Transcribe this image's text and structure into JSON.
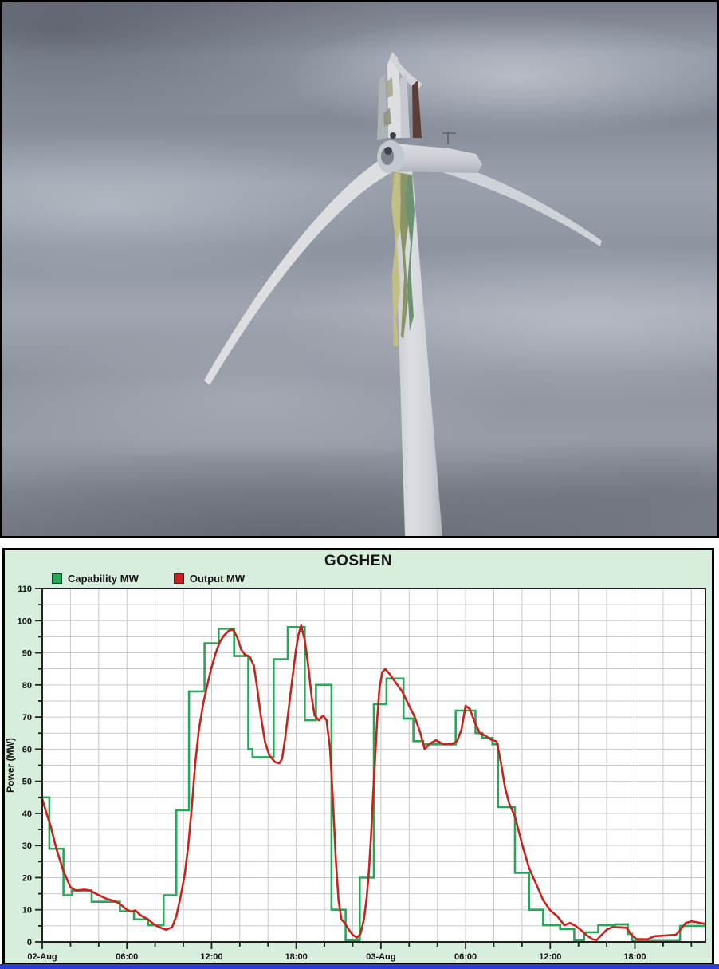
{
  "page": {
    "bottom_bar_color": "#2e3fd0"
  },
  "photo": {
    "palette": {
      "sky_base": "#8d93a0",
      "sky_light": "#b9bec7",
      "sky_dark": "#6e7380",
      "turbine_light": "#dcdee2",
      "turbine_mid": "#cfd2d8",
      "turbine_shade": "#b7bac1",
      "hub_dark": "#3f434c",
      "blade_stripe_maroon": "#5c3d38",
      "debris_olive": "#8a9465",
      "debris_yellow": "#c2bf82",
      "debris_teal": "#6d9273",
      "debris_tan": "#a8a787"
    }
  },
  "chart_data": {
    "type": "line",
    "title": "GOSHEN",
    "ylabel": "Power (MW)",
    "xlabel": "",
    "ylim": [
      0,
      110
    ],
    "y_tick_step": 10,
    "y_minor_step": 5,
    "x_range_hours": [
      0,
      47
    ],
    "x_minor_step_hours": 2,
    "x_major_ticks": [
      {
        "h": 0,
        "label": "02-Aug"
      },
      {
        "h": 6,
        "label": "06:00"
      },
      {
        "h": 12,
        "label": "12:00"
      },
      {
        "h": 18,
        "label": "18:00"
      },
      {
        "h": 24,
        "label": "03-Aug"
      },
      {
        "h": 30,
        "label": "06:00"
      },
      {
        "h": 36,
        "label": "12:00"
      },
      {
        "h": 42,
        "label": "18:00"
      }
    ],
    "grid": true,
    "legend_position": "top-left",
    "panel_background": "#d7eedd",
    "plot_background": "#ffffff",
    "grid_color": "#c8c8c8",
    "axis_color": "#222222",
    "label_color": "#111111",
    "series": [
      {
        "name": "Capability MW",
        "color": "#2ba55a",
        "interpolation": "step-after",
        "points": [
          [
            0,
            45
          ],
          [
            0.5,
            29
          ],
          [
            1.5,
            14.5
          ],
          [
            2.1,
            16
          ],
          [
            3.5,
            12.5
          ],
          [
            5.5,
            9.5
          ],
          [
            6.5,
            7
          ],
          [
            7.5,
            5.2
          ],
          [
            8.6,
            14.5
          ],
          [
            9.5,
            41
          ],
          [
            10.4,
            78
          ],
          [
            11.5,
            93
          ],
          [
            12.5,
            97.5
          ],
          [
            13.6,
            89
          ],
          [
            14.6,
            60
          ],
          [
            14.9,
            57.5
          ],
          [
            16.4,
            88
          ],
          [
            17.4,
            98
          ],
          [
            18.6,
            69
          ],
          [
            19.4,
            80
          ],
          [
            20.5,
            10
          ],
          [
            21.5,
            0.5
          ],
          [
            22.5,
            20
          ],
          [
            23.5,
            74
          ],
          [
            24.4,
            82
          ],
          [
            25.6,
            69.5
          ],
          [
            26.3,
            62.5
          ],
          [
            27,
            61.5
          ],
          [
            29.3,
            72
          ],
          [
            30.7,
            65
          ],
          [
            31.2,
            63.5
          ],
          [
            31.9,
            61.5
          ],
          [
            32.3,
            42
          ],
          [
            33.5,
            21.5
          ],
          [
            34.5,
            10
          ],
          [
            35.5,
            5.2
          ],
          [
            36.7,
            4
          ],
          [
            37.7,
            0.5
          ],
          [
            38.4,
            3
          ],
          [
            39.4,
            5.2
          ],
          [
            40.6,
            5.5
          ],
          [
            41.5,
            2.5
          ],
          [
            41.8,
            0.3
          ],
          [
            45.2,
            5
          ],
          [
            47,
            5
          ]
        ]
      },
      {
        "name": "Output MW",
        "color": "#c7231c",
        "interpolation": "linear",
        "points": [
          [
            0,
            44.5
          ],
          [
            0.3,
            40
          ],
          [
            0.6,
            36
          ],
          [
            1,
            29
          ],
          [
            1.5,
            22
          ],
          [
            2,
            17
          ],
          [
            2.4,
            16
          ],
          [
            3,
            16.3
          ],
          [
            3.4,
            16
          ],
          [
            3.8,
            15
          ],
          [
            4.5,
            13.5
          ],
          [
            5.2,
            12.6
          ],
          [
            5.6,
            11.5
          ],
          [
            6,
            10
          ],
          [
            6.3,
            9.4
          ],
          [
            6.6,
            9.8
          ],
          [
            7,
            8.2
          ],
          [
            7.5,
            7
          ],
          [
            8,
            5.2
          ],
          [
            8.5,
            4.2
          ],
          [
            8.8,
            3.8
          ],
          [
            9.2,
            4.6
          ],
          [
            9.5,
            8
          ],
          [
            9.8,
            14
          ],
          [
            10.1,
            21
          ],
          [
            10.35,
            30
          ],
          [
            10.6,
            42
          ],
          [
            10.85,
            56
          ],
          [
            11.1,
            66
          ],
          [
            11.4,
            74
          ],
          [
            11.7,
            80
          ],
          [
            12,
            85.5
          ],
          [
            12.3,
            90
          ],
          [
            12.6,
            93.5
          ],
          [
            12.9,
            95.5
          ],
          [
            13.2,
            96.8
          ],
          [
            13.5,
            97.3
          ],
          [
            13.8,
            95
          ],
          [
            14.1,
            91
          ],
          [
            14.35,
            89.5
          ],
          [
            14.7,
            88.8
          ],
          [
            15,
            86
          ],
          [
            15.2,
            80
          ],
          [
            15.5,
            70
          ],
          [
            15.8,
            62
          ],
          [
            16.1,
            58
          ],
          [
            16.5,
            56
          ],
          [
            16.8,
            55.6
          ],
          [
            17,
            57
          ],
          [
            17.2,
            63
          ],
          [
            17.45,
            72
          ],
          [
            17.7,
            81
          ],
          [
            17.95,
            90
          ],
          [
            18.15,
            95.5
          ],
          [
            18.35,
            98.5
          ],
          [
            18.6,
            94
          ],
          [
            18.85,
            86
          ],
          [
            19.1,
            76
          ],
          [
            19.3,
            70.5
          ],
          [
            19.6,
            69
          ],
          [
            19.9,
            70.5
          ],
          [
            20.15,
            69
          ],
          [
            20.4,
            60
          ],
          [
            20.6,
            44
          ],
          [
            20.8,
            26
          ],
          [
            21,
            13
          ],
          [
            21.2,
            7
          ],
          [
            21.45,
            5.8
          ],
          [
            21.7,
            4
          ],
          [
            22,
            2.2
          ],
          [
            22.3,
            1.3
          ],
          [
            22.55,
            2.5
          ],
          [
            22.8,
            7
          ],
          [
            23,
            14
          ],
          [
            23.15,
            22
          ],
          [
            23.3,
            33
          ],
          [
            23.45,
            46
          ],
          [
            23.6,
            58
          ],
          [
            23.75,
            70
          ],
          [
            23.9,
            79
          ],
          [
            24.1,
            84
          ],
          [
            24.3,
            85
          ],
          [
            24.6,
            83.5
          ],
          [
            25,
            81
          ],
          [
            25.5,
            78
          ],
          [
            26,
            73.5
          ],
          [
            26.4,
            70
          ],
          [
            26.8,
            65
          ],
          [
            27.1,
            60
          ],
          [
            27.5,
            61.8
          ],
          [
            27.9,
            62.8
          ],
          [
            28.4,
            61.6
          ],
          [
            29,
            61.5
          ],
          [
            29.4,
            62.5
          ],
          [
            29.7,
            66
          ],
          [
            30,
            73.5
          ],
          [
            30.3,
            72.5
          ],
          [
            30.6,
            69
          ],
          [
            31,
            65
          ],
          [
            31.4,
            64.2
          ],
          [
            31.8,
            63
          ],
          [
            32.2,
            62.4
          ],
          [
            32.5,
            56
          ],
          [
            32.8,
            48
          ],
          [
            33.1,
            43
          ],
          [
            33.5,
            39
          ],
          [
            34,
            30.5
          ],
          [
            34.5,
            23
          ],
          [
            35,
            18
          ],
          [
            35.5,
            13
          ],
          [
            36,
            9.8
          ],
          [
            36.5,
            8
          ],
          [
            37,
            5.2
          ],
          [
            37.4,
            5.9
          ],
          [
            37.8,
            5
          ],
          [
            38.2,
            3.6
          ],
          [
            38.6,
            2
          ],
          [
            39,
            0.8
          ],
          [
            39.3,
            0.6
          ],
          [
            39.6,
            2
          ],
          [
            40,
            3.8
          ],
          [
            40.4,
            4.6
          ],
          [
            41,
            4.5
          ],
          [
            41.4,
            4.4
          ],
          [
            41.8,
            2
          ],
          [
            42.1,
            0.9
          ],
          [
            42.9,
            0.8
          ],
          [
            43.4,
            1.8
          ],
          [
            44.2,
            2
          ],
          [
            44.9,
            2.2
          ],
          [
            45.2,
            3.6
          ],
          [
            45.6,
            5.9
          ],
          [
            46,
            6.4
          ],
          [
            46.4,
            6.1
          ],
          [
            47,
            5.6
          ]
        ]
      }
    ]
  }
}
